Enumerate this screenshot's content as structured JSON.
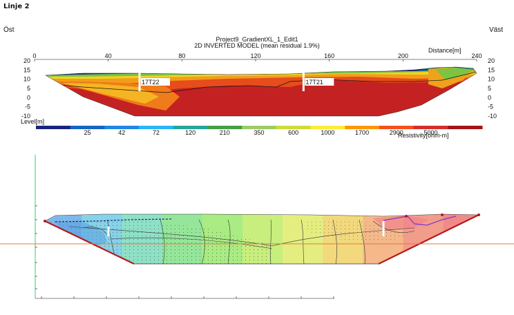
{
  "page_title": "Linje 2",
  "west_label": "Öst",
  "east_label": "Väst",
  "section": {
    "project_title": "Project9_GradientXL_1_Edit1",
    "model_title": "2D INVERTED MODEL (mean residual 1.9%)",
    "distance_label": "Distance[m]",
    "level_label": "Level[m]",
    "resistivity_label": "Resistivity[ohm-m]",
    "x_ticks": [
      "0",
      "40",
      "80",
      "120",
      "160",
      "200",
      "240"
    ],
    "y_ticks": [
      "20",
      "15",
      "10",
      "5",
      "0",
      "-5",
      "-10"
    ],
    "boreholes": [
      {
        "label": "17T22",
        "distance": 57
      },
      {
        "label": "17T21",
        "distance": 146
      }
    ],
    "colorbar": {
      "labels": [
        "25",
        "42",
        "72",
        "120",
        "210",
        "350",
        "600",
        "1000",
        "1700",
        "2900",
        "5000"
      ],
      "colors": [
        "#1a237e",
        "#1565c0",
        "#1e88e5",
        "#29b6f6",
        "#26a69a",
        "#43a047",
        "#9ccc65",
        "#cddc39",
        "#ffeb3b",
        "#ff9800",
        "#f4511e",
        "#d32f2f",
        "#a31515"
      ]
    }
  },
  "model": {
    "contour_colors": [
      "#7fb8e8",
      "#86d2e8",
      "#8ee0c6",
      "#95e69a",
      "#a9ec83",
      "#c8ee7e",
      "#e4ee80",
      "#f2d97e",
      "#f4b88a",
      "#f29c8c",
      "#f08a88"
    ]
  }
}
